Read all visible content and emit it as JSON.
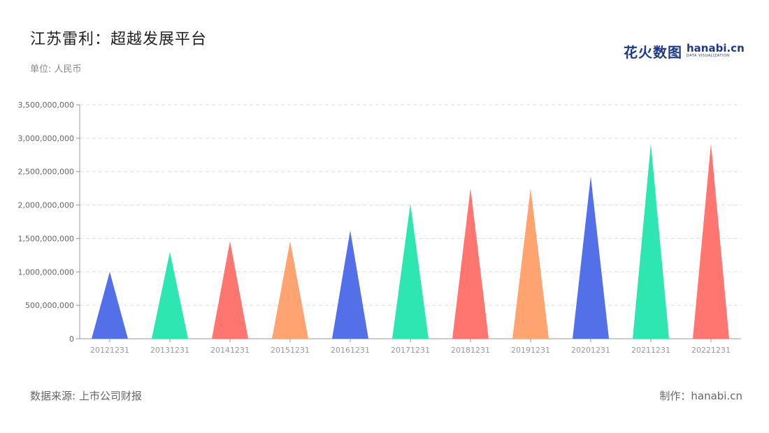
{
  "header": {
    "title": "江苏雷利：超越发展平台",
    "unit": "单位: 人民币"
  },
  "logo": {
    "cn": "花火数图",
    "en": "hanabi.cn",
    "en_sub": "DATA VISUALIZATION"
  },
  "footer": {
    "source": "数据来源: 上市公司财报",
    "made_by": "制作：hanabi.cn"
  },
  "chart_data": {
    "type": "bar",
    "shape": "triangle",
    "categories": [
      "20121231",
      "20131231",
      "20141231",
      "20151231",
      "20161231",
      "20171231",
      "20181231",
      "20191231",
      "20201231",
      "20211231",
      "20221231"
    ],
    "values": [
      1000000000,
      1300000000,
      1460000000,
      1460000000,
      1620000000,
      2020000000,
      2250000000,
      2250000000,
      2430000000,
      2920000000,
      2920000000
    ],
    "colors": [
      "#5470e8",
      "#2ee6b0",
      "#ff7570",
      "#ffa470",
      "#5470e8",
      "#2ee6b0",
      "#ff7570",
      "#ffa470",
      "#5470e8",
      "#2ee6b0",
      "#ff7570"
    ],
    "ylim": [
      0,
      3500000000
    ],
    "yticks": [
      0,
      500000000,
      1000000000,
      1500000000,
      2000000000,
      2500000000,
      3000000000,
      3500000000
    ],
    "ytick_labels": [
      "0",
      "500,000,000",
      "1,000,000,000",
      "1,500,000,000",
      "2,000,000,000",
      "2,500,000,000",
      "3,000,000,000",
      "3,500,000,000"
    ],
    "grid": true,
    "legend": "none"
  }
}
